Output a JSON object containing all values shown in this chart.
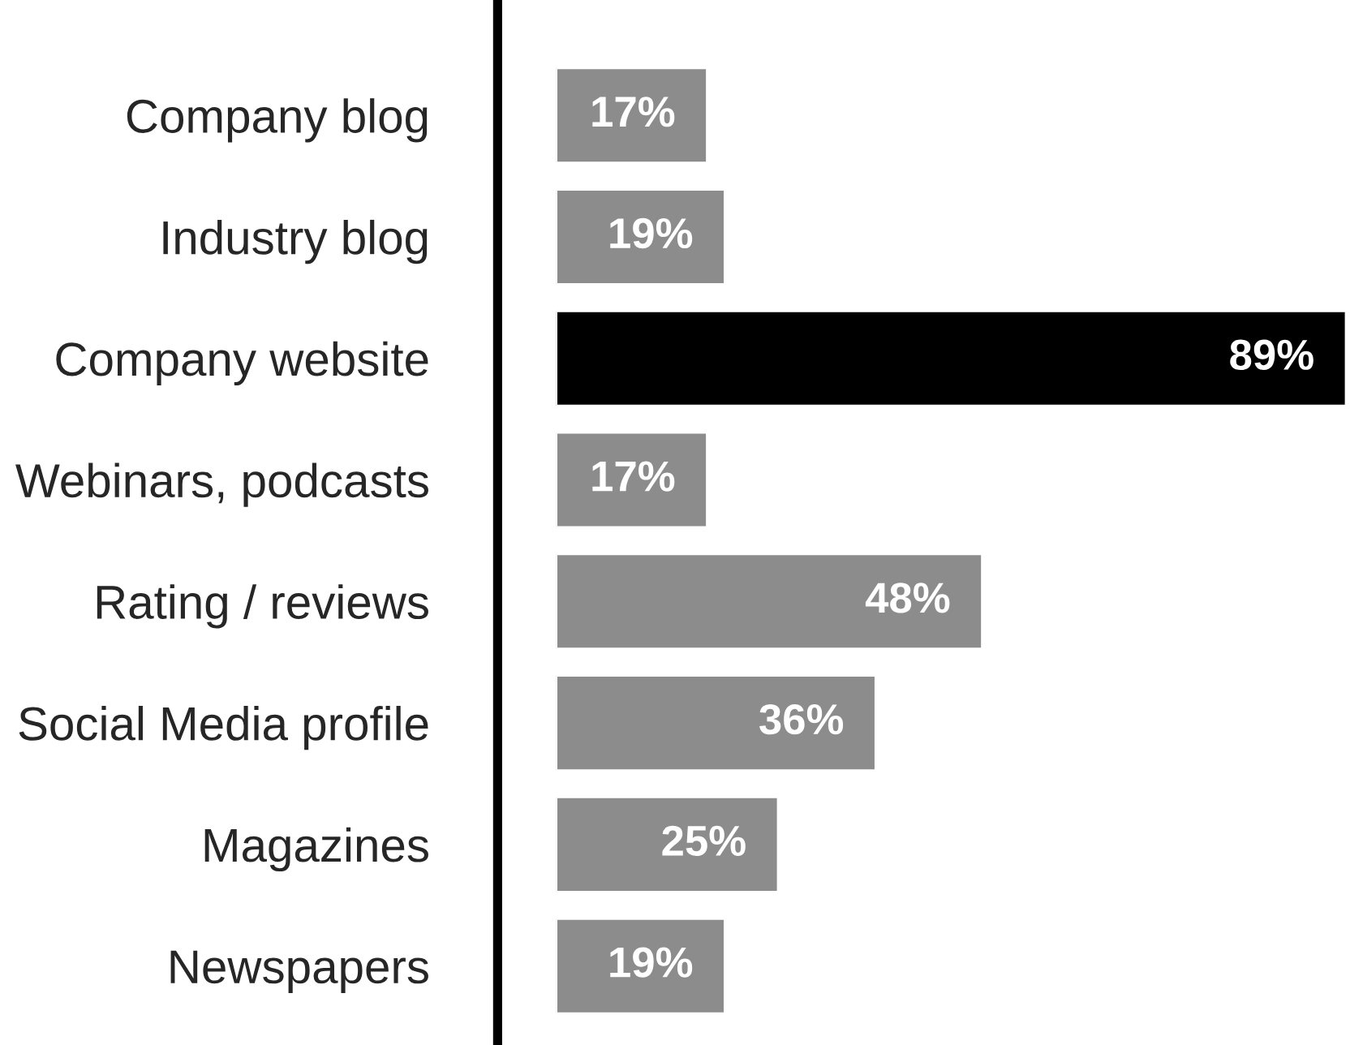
{
  "chart_data": {
    "type": "bar",
    "orientation": "horizontal",
    "categories": [
      "Company blog",
      "Industry blog",
      "Company website",
      "Webinars, podcasts",
      "Rating / reviews",
      "Social Media profile",
      "Magazines",
      "Newspapers"
    ],
    "values": [
      17,
      19,
      89,
      17,
      48,
      36,
      25,
      19
    ],
    "colors": [
      "#8c8c8c",
      "#8c8c8c",
      "#000000",
      "#8c8c8c",
      "#8c8c8c",
      "#8c8c8c",
      "#8c8c8c",
      "#8c8c8c"
    ],
    "value_labels": [
      "17%",
      "19%",
      "89%",
      "17%",
      "48%",
      "36%",
      "25%",
      "19%"
    ],
    "tick_labels": "y",
    "grid": false,
    "legend": false
  }
}
